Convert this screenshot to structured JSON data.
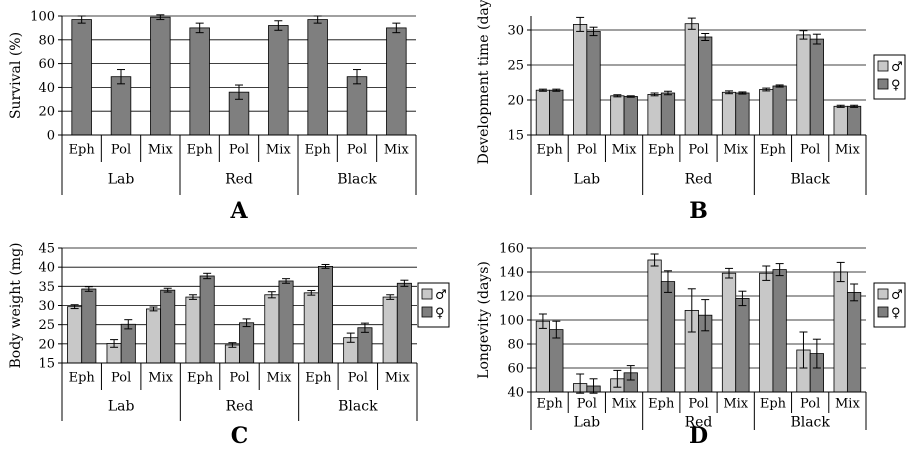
{
  "chart_data": [
    {
      "panel": "A",
      "type": "bar",
      "ylabel": "Survival (%)",
      "ylim": [
        0,
        100
      ],
      "yticks": [
        0,
        20,
        40,
        60,
        80,
        100
      ],
      "groups": [
        "Lab",
        "Red",
        "Black"
      ],
      "categories": [
        "Eph",
        "Pol",
        "Mix",
        "Eph",
        "Pol",
        "Mix",
        "Eph",
        "Pol",
        "Mix"
      ],
      "legend": [],
      "series": [
        {
          "color": "#7f7f7f",
          "values": [
            97,
            49,
            99,
            90,
            36,
            92,
            97,
            49,
            90
          ],
          "errors": [
            3,
            6,
            2,
            4,
            6,
            4,
            3,
            6,
            4
          ]
        }
      ]
    },
    {
      "panel": "B",
      "type": "bar",
      "ylabel": "Development time (days)",
      "ylim": [
        15,
        32
      ],
      "yticks": [
        15,
        20,
        25,
        30
      ],
      "groups": [
        "Lab",
        "Red",
        "Black"
      ],
      "categories": [
        "Eph",
        "Pol",
        "Mix",
        "Eph",
        "Pol",
        "Mix",
        "Eph",
        "Pol",
        "Mix"
      ],
      "legend": [
        "♂",
        "♀"
      ],
      "series": [
        {
          "color": "#c8c8c8",
          "values": [
            21.4,
            30.8,
            20.6,
            20.8,
            30.9,
            21.1,
            21.5,
            29.3,
            19.1
          ],
          "errors": [
            0.15,
            1.0,
            0.15,
            0.2,
            0.8,
            0.2,
            0.2,
            0.6,
            0.15
          ]
        },
        {
          "color": "#7f7f7f",
          "values": [
            21.4,
            29.8,
            20.5,
            21.0,
            29.0,
            21.0,
            22.0,
            28.7,
            19.1
          ],
          "errors": [
            0.15,
            0.6,
            0.1,
            0.25,
            0.5,
            0.15,
            0.15,
            0.7,
            0.15
          ]
        }
      ]
    },
    {
      "panel": "C",
      "type": "bar",
      "ylabel": "Body weight (mg)",
      "ylim": [
        15,
        45
      ],
      "yticks": [
        15,
        20,
        25,
        30,
        35,
        40,
        45
      ],
      "groups": [
        "Lab",
        "Red",
        "Black"
      ],
      "categories": [
        "Eph",
        "Pol",
        "Mix",
        "Eph",
        "Pol",
        "Mix",
        "Eph",
        "Pol",
        "Mix"
      ],
      "legend": [
        "♂",
        "♀"
      ],
      "series": [
        {
          "color": "#c8c8c8",
          "values": [
            29.7,
            20.1,
            29.1,
            32.2,
            19.7,
            32.8,
            33.3,
            21.6,
            32.2
          ],
          "errors": [
            0.5,
            1.0,
            0.5,
            0.6,
            0.6,
            0.8,
            0.6,
            1.2,
            0.6
          ]
        },
        {
          "color": "#7f7f7f",
          "values": [
            34.3,
            25.1,
            34.0,
            37.7,
            25.5,
            36.4,
            40.2,
            24.2,
            35.8
          ],
          "errors": [
            0.6,
            1.2,
            0.5,
            0.7,
            1.0,
            0.6,
            0.5,
            1.2,
            0.8
          ]
        }
      ]
    },
    {
      "panel": "D",
      "type": "bar",
      "ylabel": "Longevity (days)",
      "ylim": [
        40,
        160
      ],
      "yticks": [
        40,
        60,
        80,
        100,
        120,
        140,
        160
      ],
      "groups": [
        "Lab",
        "Red",
        "Black"
      ],
      "categories": [
        "Eph",
        "Pol",
        "Mix",
        "Eph",
        "Pol",
        "Mix",
        "Eph",
        "Pol",
        "Mix"
      ],
      "legend": [
        "♂",
        "♀"
      ],
      "series": [
        {
          "color": "#c8c8c8",
          "values": [
            99,
            47,
            51,
            150,
            108,
            139,
            139,
            75,
            140
          ],
          "errors": [
            6,
            8,
            7,
            5,
            18,
            4,
            6,
            15,
            8
          ]
        },
        {
          "color": "#7f7f7f",
          "values": [
            92,
            45,
            56,
            132,
            104,
            118,
            142,
            72,
            123
          ],
          "errors": [
            7,
            6,
            6,
            9,
            13,
            6,
            5,
            12,
            7
          ]
        }
      ]
    }
  ]
}
